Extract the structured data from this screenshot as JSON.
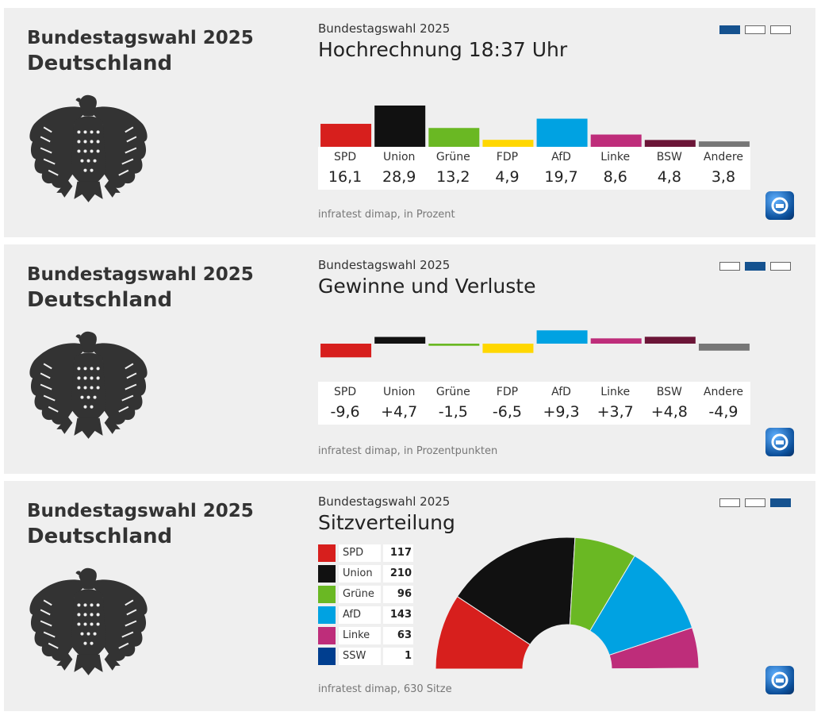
{
  "panels": [
    {
      "left_title": "Bundestagswahl 2025",
      "left_sub": "Deutschland",
      "small_title": "Bundestagswahl 2025",
      "big_title": "Hochrechnung 18:37 Uhr",
      "source": "infratest dimap, in Prozent",
      "active_page": 1
    },
    {
      "left_title": "Bundestagswahl 2025",
      "left_sub": "Deutschland",
      "small_title": "Bundestagswahl 2025",
      "big_title": "Gewinne und Verluste",
      "source": "infratest dimap, in Prozentpunkten",
      "active_page": 2
    },
    {
      "left_title": "Bundestagswahl 2025",
      "left_sub": "Deutschland",
      "small_title": "Bundestagswahl 2025",
      "big_title": "Sitzverteilung",
      "source": "infratest dimap, 630 Sitze",
      "active_page": 3
    }
  ],
  "icons": {
    "eagle": "federal-eagle-icon",
    "broadcaster": "tagesschau-logo-icon"
  },
  "chart_data": [
    {
      "type": "bar",
      "title": "Hochrechnung 18:37 Uhr",
      "categories": [
        "SPD",
        "Union",
        "Grüne",
        "FDP",
        "AfD",
        "Linke",
        "BSW",
        "Andere"
      ],
      "values": [
        16.1,
        28.9,
        13.2,
        4.9,
        19.7,
        8.6,
        4.8,
        3.8
      ],
      "labels": [
        "16,1",
        "28,9",
        "13,2",
        "4,9",
        "19,7",
        "8,6",
        "4,8",
        "3,8"
      ],
      "colors": [
        "#d71f1d",
        "#111111",
        "#6ab823",
        "#ffd700",
        "#00a2e2",
        "#be2d7a",
        "#6b1537",
        "#777777"
      ],
      "ylim": [
        0,
        30
      ]
    },
    {
      "type": "bar",
      "title": "Gewinne und Verluste",
      "categories": [
        "SPD",
        "Union",
        "Grüne",
        "FDP",
        "AfD",
        "Linke",
        "BSW",
        "Andere"
      ],
      "values": [
        -9.6,
        4.7,
        -1.5,
        -6.5,
        9.3,
        3.7,
        4.8,
        -4.9
      ],
      "labels": [
        "-9,6",
        "+4,7",
        "-1,5",
        "-6,5",
        "+9,3",
        "+3,7",
        "+4,8",
        "-4,9"
      ],
      "colors": [
        "#d71f1d",
        "#111111",
        "#6ab823",
        "#ffd700",
        "#00a2e2",
        "#be2d7a",
        "#6b1537",
        "#777777"
      ],
      "ylim": [
        -10,
        10
      ]
    },
    {
      "type": "pie",
      "title": "Sitzverteilung",
      "categories": [
        "SPD",
        "Union",
        "Grüne",
        "AfD",
        "Linke",
        "SSW"
      ],
      "values": [
        117,
        210,
        96,
        143,
        63,
        1
      ],
      "colors": [
        "#d71f1d",
        "#111111",
        "#6ab823",
        "#00a2e2",
        "#be2d7a",
        "#003e8f"
      ],
      "total": 630
    }
  ]
}
